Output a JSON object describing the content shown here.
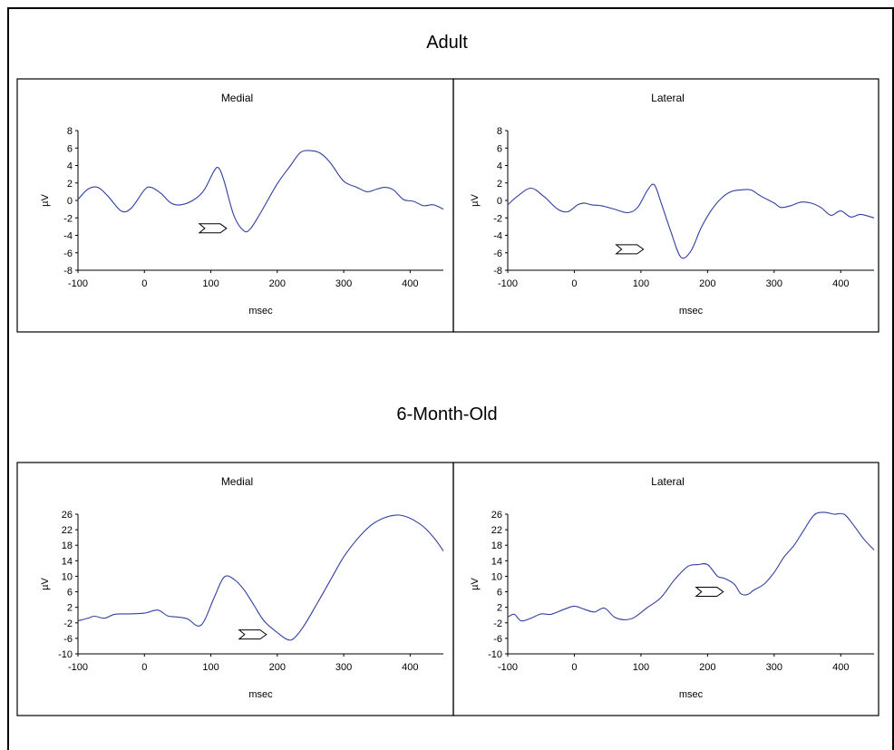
{
  "sections": [
    {
      "title": "Adult",
      "panels": [
        {
          "title": "Medial",
          "xlabel": "msec",
          "ylabel": "µV",
          "xticks": [
            -100,
            0,
            100,
            200,
            300,
            400
          ],
          "yticks": [
            8,
            6,
            4,
            2,
            0,
            -2,
            -4,
            -6,
            -8
          ],
          "arrow_at": [
            140,
            -3.2
          ],
          "series_color": "#3040a0"
        },
        {
          "title": "Lateral",
          "xlabel": "msec",
          "ylabel": "µV",
          "xticks": [
            -100,
            0,
            100,
            200,
            300,
            400
          ],
          "yticks": [
            8,
            6,
            4,
            2,
            0,
            -2,
            -4,
            -6,
            -8
          ],
          "arrow_at": [
            120,
            -5.6
          ],
          "series_color": "#3040a0"
        }
      ]
    },
    {
      "title": "6-Month-Old",
      "panels": [
        {
          "title": "Medial",
          "xlabel": "msec",
          "ylabel": "µV",
          "xticks": [
            -100,
            0,
            100,
            200,
            300,
            400
          ],
          "yticks": [
            26,
            22,
            18,
            14,
            10,
            6,
            2,
            -2,
            -6,
            -10
          ],
          "arrow_at": [
            200,
            -5
          ],
          "series_color": "#3040a0"
        },
        {
          "title": "Lateral",
          "xlabel": "msec",
          "ylabel": "µV",
          "xticks": [
            -100,
            0,
            100,
            200,
            300,
            400
          ],
          "yticks": [
            26,
            22,
            18,
            14,
            10,
            6,
            2,
            -2,
            -6,
            -10
          ],
          "arrow_at": [
            240,
            6
          ],
          "series_color": "#3040a0"
        }
      ]
    }
  ],
  "chart_data": [
    {
      "type": "line",
      "title": "Medial",
      "xlabel": "msec",
      "ylabel": "µV",
      "xlim": [
        -100,
        450
      ],
      "ylim": [
        -8,
        8
      ],
      "series": [
        {
          "x": [
            -100,
            -85,
            -70,
            -55,
            -35,
            -20,
            0,
            10,
            25,
            40,
            55,
            75,
            90,
            105,
            112,
            120,
            135,
            150,
            160,
            175,
            200,
            220,
            235,
            250,
            265,
            280,
            300,
            320,
            335,
            350,
            362,
            375,
            390,
            405,
            420,
            435,
            450
          ],
          "y": [
            0.1,
            1.3,
            1.5,
            0.5,
            -1.2,
            -0.9,
            1.2,
            1.5,
            0.8,
            -0.3,
            -0.5,
            0.1,
            1.2,
            3.4,
            3.7,
            2.2,
            -1.8,
            -3.5,
            -3.2,
            -1.4,
            1.9,
            4.0,
            5.5,
            5.7,
            5.4,
            4.3,
            2.2,
            1.5,
            1.0,
            1.3,
            1.5,
            1.2,
            0.1,
            -0.1,
            -0.6,
            -0.5,
            -1.0
          ]
        }
      ]
    },
    {
      "type": "line",
      "title": "Lateral",
      "xlabel": "msec",
      "ylabel": "µV",
      "xlim": [
        -100,
        450
      ],
      "ylim": [
        -8,
        8
      ],
      "series": [
        {
          "x": [
            -100,
            -85,
            -65,
            -45,
            -25,
            -10,
            5,
            15,
            25,
            40,
            60,
            80,
            95,
            110,
            120,
            130,
            145,
            160,
            175,
            190,
            205,
            220,
            235,
            250,
            265,
            280,
            300,
            310,
            325,
            340,
            355,
            370,
            385,
            400,
            415,
            430,
            450
          ],
          "y": [
            -0.5,
            0.5,
            1.4,
            0.4,
            -1.0,
            -1.3,
            -0.5,
            -0.3,
            -0.5,
            -0.6,
            -1.0,
            -1.4,
            -0.8,
            1.2,
            1.8,
            -0.2,
            -3.6,
            -6.5,
            -5.8,
            -3.2,
            -1.2,
            0.2,
            1.0,
            1.2,
            1.2,
            0.5,
            -0.3,
            -0.8,
            -0.6,
            -0.2,
            -0.3,
            -0.8,
            -1.7,
            -1.2,
            -1.9,
            -1.6,
            -2.0
          ]
        }
      ]
    },
    {
      "type": "line",
      "title": "Medial",
      "xlabel": "msec",
      "ylabel": "µV",
      "xlim": [
        -100,
        450
      ],
      "ylim": [
        -10,
        26
      ],
      "series": [
        {
          "x": [
            -100,
            -85,
            -75,
            -60,
            -45,
            -25,
            0,
            20,
            35,
            50,
            65,
            80,
            90,
            105,
            120,
            135,
            150,
            165,
            180,
            200,
            215,
            225,
            240,
            260,
            280,
            300,
            320,
            340,
            360,
            380,
            395,
            410,
            425,
            440,
            450
          ],
          "y": [
            -1.5,
            -0.8,
            -0.3,
            -0.8,
            0.2,
            0.3,
            0.5,
            1.3,
            -0.2,
            -0.5,
            -1.0,
            -2.8,
            -1.5,
            4.5,
            9.8,
            9.2,
            6.5,
            2.5,
            -1.5,
            -4.5,
            -6.3,
            -6.0,
            -2.8,
            3.0,
            9.0,
            15.0,
            19.5,
            23.0,
            25.0,
            25.8,
            25.3,
            24.0,
            22.0,
            19.0,
            16.5
          ]
        }
      ]
    },
    {
      "type": "line",
      "title": "Lateral",
      "xlabel": "msec",
      "ylabel": "µV",
      "xlim": [
        -100,
        450
      ],
      "ylim": [
        -10,
        26
      ],
      "series": [
        {
          "x": [
            -100,
            -90,
            -80,
            -65,
            -50,
            -35,
            -15,
            0,
            15,
            30,
            45,
            60,
            75,
            90,
            110,
            130,
            150,
            170,
            185,
            200,
            215,
            225,
            240,
            250,
            260,
            270,
            285,
            300,
            315,
            330,
            345,
            360,
            375,
            390,
            405,
            420,
            435,
            450
          ],
          "y": [
            -0.5,
            0.2,
            -1.5,
            -0.8,
            0.3,
            0.2,
            1.5,
            2.3,
            1.5,
            0.8,
            1.8,
            -0.5,
            -1.2,
            -0.6,
            2.0,
            4.5,
            9.0,
            12.5,
            13.0,
            13.0,
            10.0,
            9.5,
            8.0,
            5.5,
            5.3,
            6.5,
            8.0,
            11.0,
            15.0,
            18.0,
            22.0,
            25.8,
            26.5,
            26.0,
            26.0,
            23.0,
            19.5,
            16.8
          ]
        }
      ]
    }
  ]
}
